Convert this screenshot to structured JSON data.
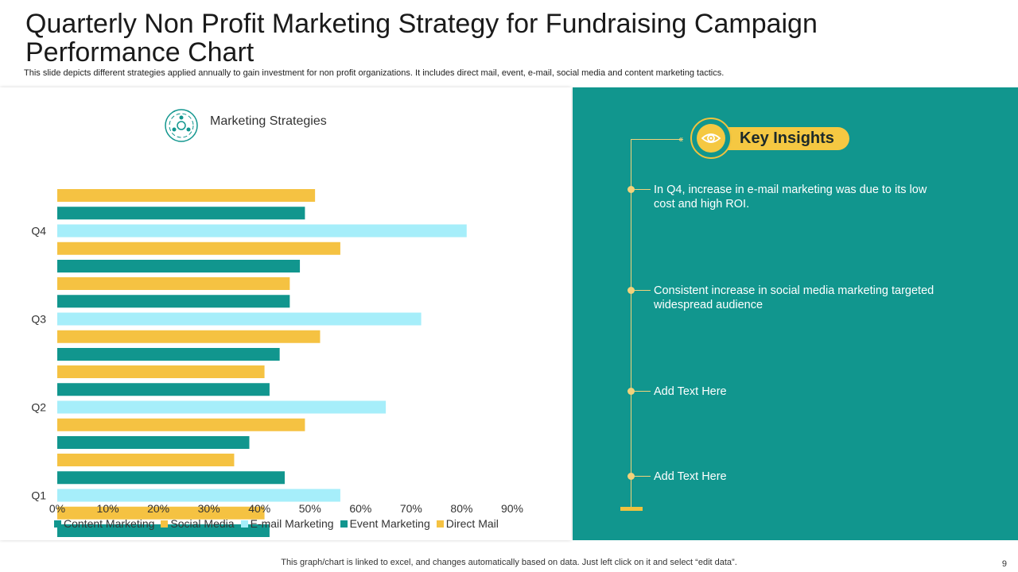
{
  "slide": {
    "title": "Quarterly Non Profit Marketing Strategy for Fundraising Campaign Performance Chart",
    "subtitle": "This slide depicts different strategies applied annually to gain investment for non profit organizations. It includes direct mail, event, e-mail, social media and content marketing tactics.",
    "footer_note": "This graph/chart is linked to excel, and changes automatically based on data. Just left click on it and select “edit data”.",
    "page_number": "9"
  },
  "chart_heading": "Marketing Strategies",
  "chart_data": {
    "type": "bar",
    "orientation": "horizontal",
    "title": "Marketing Strategies",
    "categories": [
      "Q1",
      "Q2",
      "Q3",
      "Q4"
    ],
    "series": [
      {
        "name": "Content Marketing",
        "color": "#11968e",
        "values": [
          42,
          38,
          44,
          48
        ]
      },
      {
        "name": "Social Media",
        "color": "#f5c242",
        "values": [
          41,
          49,
          52,
          56
        ]
      },
      {
        "name": "E-mail Marketing",
        "color": "#a6eefa",
        "values": [
          56,
          65,
          72,
          81
        ]
      },
      {
        "name": "Event Marketing",
        "color": "#11968e",
        "values": [
          45,
          42,
          46,
          49
        ]
      },
      {
        "name": "Direct Mail",
        "color": "#f5c242",
        "values": [
          35,
          41,
          46,
          51
        ]
      }
    ],
    "xlim": [
      0,
      90
    ],
    "xticks": [
      "0%",
      "10%",
      "20%",
      "30%",
      "40%",
      "50%",
      "60%",
      "70%",
      "80%",
      "90%"
    ],
    "legend": "bottom",
    "grid": false
  },
  "insights": {
    "title": "Key Insights",
    "items": [
      "In Q4, increase in e-mail marketing was due to its low cost and high ROI.",
      "Consistent increase in social media marketing targeted widespread audience",
      "Add Text Here",
      "Add Text Here"
    ]
  },
  "colors": {
    "teal": "#11968e",
    "yellow": "#f5c242",
    "light_blue": "#a6eefa"
  }
}
